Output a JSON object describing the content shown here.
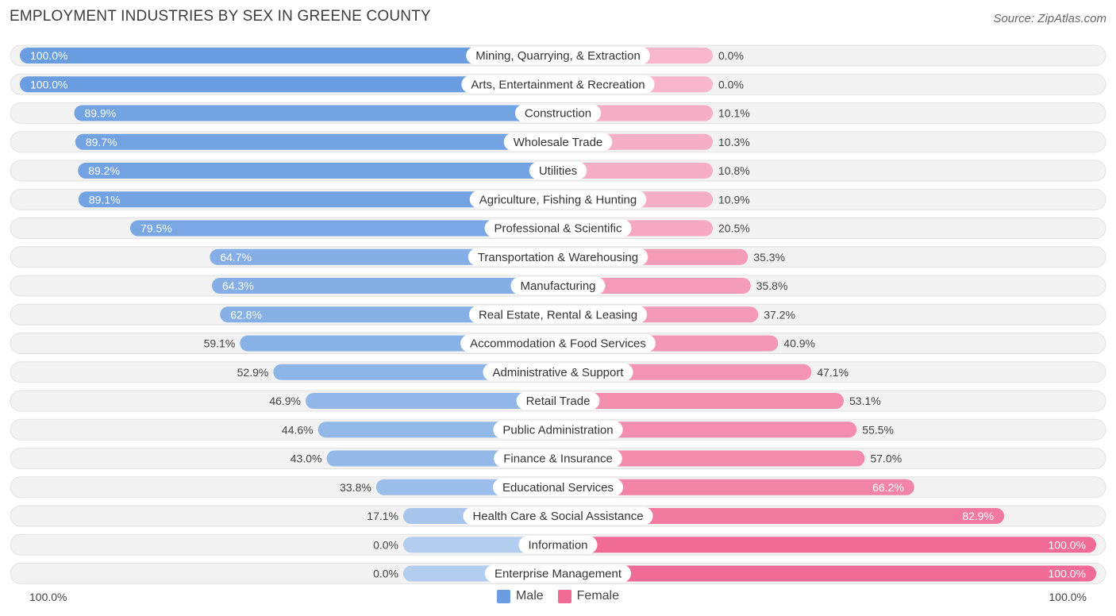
{
  "title": "EMPLOYMENT INDUSTRIES BY SEX IN GREENE COUNTY",
  "source": "Source: ZipAtlas.com",
  "axis": {
    "left_label": "100.0%",
    "right_label": "100.0%"
  },
  "legend": {
    "male": {
      "label": "Male",
      "color": "#6a9de0"
    },
    "female": {
      "label": "Female",
      "color": "#f06b96"
    }
  },
  "chart_data": {
    "type": "bar",
    "orientation": "horizontal-diverging",
    "title": "EMPLOYMENT INDUSTRIES BY SEX IN GREENE COUNTY",
    "xlim": [
      -100,
      100
    ],
    "categories": [
      "Mining, Quarrying, & Extraction",
      "Arts, Entertainment & Recreation",
      "Construction",
      "Wholesale Trade",
      "Utilities",
      "Agriculture, Fishing & Hunting",
      "Professional & Scientific",
      "Transportation & Warehousing",
      "Manufacturing",
      "Real Estate, Rental & Leasing",
      "Accommodation & Food Services",
      "Administrative & Support",
      "Retail Trade",
      "Public Administration",
      "Finance & Insurance",
      "Educational Services",
      "Health Care & Social Assistance",
      "Information",
      "Enterprise Management"
    ],
    "series": [
      {
        "name": "Male",
        "color": "#6a9de0",
        "values": [
          100.0,
          100.0,
          89.9,
          89.7,
          89.2,
          89.1,
          79.5,
          64.7,
          64.3,
          62.8,
          59.1,
          52.9,
          46.9,
          44.6,
          43.0,
          33.8,
          17.1,
          0.0,
          0.0
        ],
        "labels": [
          "100.0%",
          "100.0%",
          "89.9%",
          "89.7%",
          "89.2%",
          "89.1%",
          "79.5%",
          "64.7%",
          "64.3%",
          "62.8%",
          "59.1%",
          "52.9%",
          "46.9%",
          "44.6%",
          "43.0%",
          "33.8%",
          "17.1%",
          "0.0%",
          "0.0%"
        ]
      },
      {
        "name": "Female",
        "color": "#f06b96",
        "values": [
          0.0,
          0.0,
          10.1,
          10.3,
          10.8,
          10.9,
          20.5,
          35.3,
          35.8,
          37.2,
          40.9,
          47.1,
          53.1,
          55.5,
          57.0,
          66.2,
          82.9,
          100.0,
          100.0
        ],
        "labels": [
          "0.0%",
          "0.0%",
          "10.1%",
          "10.3%",
          "10.8%",
          "10.9%",
          "20.5%",
          "35.3%",
          "35.8%",
          "37.2%",
          "40.9%",
          "47.1%",
          "53.1%",
          "55.5%",
          "57.0%",
          "66.2%",
          "82.9%",
          "100.0%",
          "100.0%"
        ]
      }
    ],
    "legend_position": "bottom-center"
  }
}
